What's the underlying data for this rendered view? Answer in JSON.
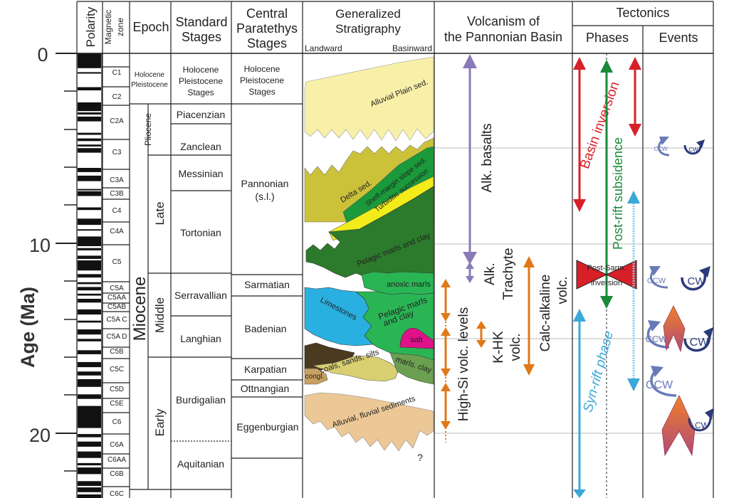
{
  "axis": {
    "title": "Age (Ma)",
    "tick_labels": [
      "0",
      "10",
      "20"
    ]
  },
  "headers": {
    "polarity": "Polarity",
    "magnetic_zone": [
      "Magnetic",
      "zone"
    ],
    "epoch": "Epoch",
    "standard_stages": [
      "Standard",
      "Stages"
    ],
    "central_paratethys": [
      "Central",
      "Paratethys",
      "Stages"
    ],
    "stratigraphy": [
      "Generalized",
      "Stratigraphy"
    ],
    "landward": "Landward",
    "basinward": "Basinward",
    "volcanism": [
      "Volcanism of",
      "the Pannonian Basin"
    ],
    "tectonics": "Tectonics",
    "phases": "Phases",
    "events": "Events"
  },
  "magnetic_zones": [
    "C1",
    "C2",
    "C2A",
    "C3",
    "C3A",
    "C3B",
    "C4",
    "C4A",
    "C5",
    "C5A",
    "C5AA",
    "C5AB",
    "C5A C",
    "C5A D",
    "C5B",
    "C5C",
    "C5D",
    "C5E",
    "C6",
    "C6A",
    "C6AA",
    "C6B",
    "C6C"
  ],
  "epochs": {
    "holocene_pleistocene": [
      "Holocene",
      "Pleistocene"
    ],
    "pliocene": "Pliocene",
    "miocene": "Miocene",
    "late": "Late",
    "middle": "Middle",
    "early": "Early"
  },
  "standard_stages": {
    "holocene": [
      "Holocene",
      "Pleistocene",
      "Stages"
    ],
    "piacenzian": "Piacenzian",
    "zanclean": "Zanclean",
    "messinian": "Messinian",
    "tortonian": "Tortonian",
    "serravallian": "Serravallian",
    "langhian": "Langhian",
    "burdigalian": "Burdigalian",
    "aquitanian": "Aquitanian"
  },
  "paratethys_stages": {
    "holocene": [
      "Holocene",
      "Pleistocene",
      "Stages"
    ],
    "pannonian": [
      "Pannonian",
      "(s.l.)"
    ],
    "sarmatian": "Sarmatian",
    "badenian": "Badenian",
    "karpatian": "Karpatian",
    "ottnangian": "Ottnangian",
    "eggenburgian": "Eggenburgian"
  },
  "strat_units": {
    "alluvial_plain": "Alluvial Plain sed.",
    "delta": "Delta sed.",
    "shelf_margin": "Shelf-margin slope sed.",
    "turbiditic": "Turbiditic succession",
    "pelagic_upper": "Pelagic marls and clay",
    "anoxic": "anoxic marls",
    "limestones": "Limestones",
    "pelagic_lower": [
      "Pelagic marls",
      "and clay"
    ],
    "salt": "salt",
    "coals": "coals, sands, silts",
    "marls_clay": "marls, clay",
    "congl": "congl.",
    "alluvial_fluvial": "Alluvial, fluvial sediments",
    "question": "?"
  },
  "volcanism": {
    "alk_basalts": "Alk. basalts",
    "alk_trachyte": [
      "Alk.",
      "Trachyte"
    ],
    "calc_alkaline": [
      "Calc-alkaline",
      "volc."
    ],
    "k_hk": [
      "K-HK",
      "volc."
    ],
    "high_si": "High-Si volc. levels"
  },
  "tectonics": {
    "basin_inversion": "Basin inversion",
    "post_rift": "Post-rift subsidence",
    "post_sarm": [
      "Post-Sarm.",
      "inversion"
    ],
    "syn_rift": "Syn-rift phase",
    "ccw": "CCW",
    "cw": "CW"
  },
  "colors": {
    "alluvial_plain": "#f8f0a8",
    "delta": "#ccc23a",
    "shelf": "#1a9a3a",
    "turbidite": "#f2ec1a",
    "pelagic_dark": "#2c7a2c",
    "pelagic_light": "#2ab555",
    "limestone": "#2ab0e0",
    "salt": "#e0128a",
    "coal": "#4a3a20",
    "fluvial": "#ecc896",
    "volc_purple": "#8a7ab8",
    "volc_orange": "#e07818",
    "tect_red": "#d82028",
    "tect_green": "#1a8a3a",
    "tect_blue": "#3aa8d8",
    "event_navy": "#2a3a7a"
  }
}
